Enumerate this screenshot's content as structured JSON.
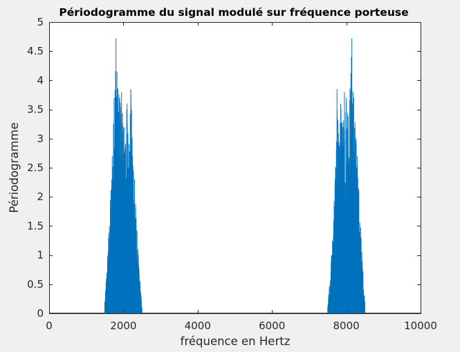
{
  "chart_data": {
    "type": "bar",
    "title": "Périodogramme du signal modulé sur fréquence porteuse",
    "xlabel": "fréquence en Hertz",
    "ylabel": "Périodogramme",
    "xlim": [
      0,
      10000
    ],
    "ylim": [
      0,
      5
    ],
    "xticks": [
      0,
      2000,
      4000,
      6000,
      8000,
      10000
    ],
    "yticks": [
      0,
      0.5,
      1,
      1.5,
      2,
      2.5,
      3,
      3.5,
      4,
      4.5,
      5
    ],
    "xtick_labels": [
      "0",
      "2000",
      "4000",
      "6000",
      "8000",
      "10000"
    ],
    "ytick_labels": [
      "0",
      "0.5",
      "1",
      "1.5",
      "2",
      "2.5",
      "3",
      "3.5",
      "4",
      "4.5",
      "5"
    ],
    "grid": false,
    "series": [
      {
        "color": "#0072BD",
        "bands": [
          {
            "x": [
              1500,
              1600,
              1700,
              1750,
              1800,
              1850,
              1900,
              1950,
              2000,
              2100,
              2150,
              2200,
              2300,
              2400,
              2500
            ],
            "values": [
              0.2,
              1.3,
              2.7,
              3.7,
              4.72,
              3.86,
              3.7,
              3.8,
              3.2,
              3.6,
              2.9,
              3.85,
              2.3,
              1.0,
              0.1
            ]
          },
          {
            "x": [
              7500,
              7600,
              7700,
              7750,
              7800,
              7850,
              7900,
              7950,
              8000,
              8100,
              8150,
              8200,
              8300,
              8400,
              8500
            ],
            "values": [
              0.1,
              1.0,
              2.3,
              3.85,
              2.9,
              3.6,
              3.2,
              3.8,
              3.7,
              3.86,
              4.72,
              3.7,
              2.7,
              1.3,
              0.2
            ]
          }
        ]
      }
    ]
  }
}
